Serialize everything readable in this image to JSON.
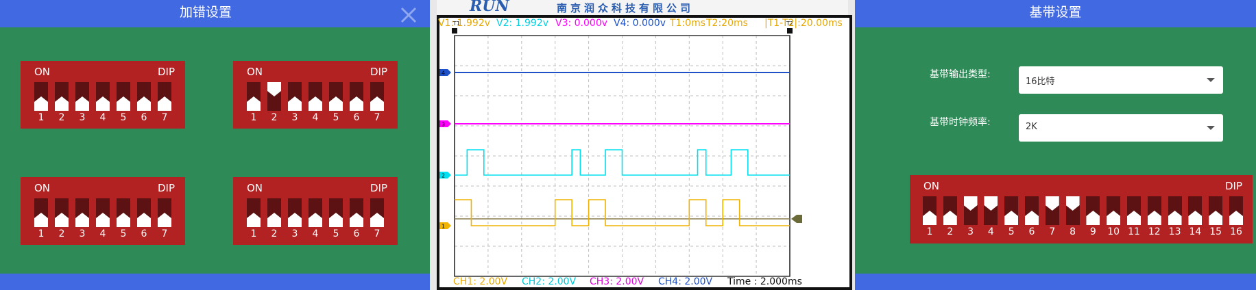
{
  "left_panel": {
    "title": "加错设置",
    "dips": [
      {
        "on_label": "ON",
        "dip_label": "DIP",
        "switches": [
          {
            "n": "1",
            "up": false
          },
          {
            "n": "2",
            "up": false
          },
          {
            "n": "3",
            "up": false
          },
          {
            "n": "4",
            "up": false
          },
          {
            "n": "5",
            "up": false
          },
          {
            "n": "6",
            "up": false
          },
          {
            "n": "7",
            "up": false
          }
        ]
      },
      {
        "on_label": "ON",
        "dip_label": "DIP",
        "switches": [
          {
            "n": "1",
            "up": false
          },
          {
            "n": "2",
            "up": true
          },
          {
            "n": "3",
            "up": false
          },
          {
            "n": "4",
            "up": false
          },
          {
            "n": "5",
            "up": false
          },
          {
            "n": "6",
            "up": false
          },
          {
            "n": "7",
            "up": false
          }
        ]
      },
      {
        "on_label": "ON",
        "dip_label": "DIP",
        "switches": [
          {
            "n": "1",
            "up": false
          },
          {
            "n": "2",
            "up": false
          },
          {
            "n": "3",
            "up": false
          },
          {
            "n": "4",
            "up": false
          },
          {
            "n": "5",
            "up": false
          },
          {
            "n": "6",
            "up": false
          },
          {
            "n": "7",
            "up": false
          }
        ]
      },
      {
        "on_label": "ON",
        "dip_label": "DIP",
        "switches": [
          {
            "n": "1",
            "up": false
          },
          {
            "n": "2",
            "up": false
          },
          {
            "n": "3",
            "up": false
          },
          {
            "n": "4",
            "up": false
          },
          {
            "n": "5",
            "up": false
          },
          {
            "n": "6",
            "up": false
          },
          {
            "n": "7",
            "up": false
          }
        ]
      }
    ]
  },
  "oscilloscope": {
    "brand_logo": "RUN",
    "brand_name": "南京润众科技有限公司",
    "measurements": [
      {
        "text": "V1: 1.992v",
        "color": "#e6a800"
      },
      {
        "text": "V2: 1.992v",
        "color": "#00d0e0"
      },
      {
        "text": "V3: 0.000v",
        "color": "#ff00ff"
      },
      {
        "text": "V4: 0.000v",
        "color": "#1e50c8"
      },
      {
        "text": "T1:0ms",
        "color": "#e6a800"
      },
      {
        "text": "T2:20ms",
        "color": "#e6a800"
      },
      {
        "text": "|T1-T2|:20.00ms",
        "color": "#e6a800"
      }
    ],
    "cursor_labels": [
      "T1",
      "T2"
    ],
    "channel_markers": [
      "4",
      "3",
      "2",
      "1"
    ],
    "bottom_labels": [
      {
        "text": "CH1:  2.00V",
        "color": "#e6a800"
      },
      {
        "text": "CH2:  2.00V",
        "color": "#00c8d8"
      },
      {
        "text": "CH3:  2.00V",
        "color": "#e000e0"
      },
      {
        "text": "CH4:  2.00V",
        "color": "#1e50c8"
      },
      {
        "text": "Time : 2.000ms",
        "color": "#111111"
      }
    ],
    "channel_colors": {
      "ch1": "#f0b400",
      "ch2": "#00e0f0",
      "ch3": "#ff00ff",
      "ch4": "#1e50c8"
    },
    "time_per_div_ms": 2.0,
    "volts_per_div": 2.0,
    "ch2_high_intervals_ms": [
      [
        0.75,
        1.75
      ],
      [
        7.0,
        7.5
      ],
      [
        9.0,
        10.0
      ],
      [
        14.5,
        15.0
      ],
      [
        16.5,
        17.5
      ]
    ],
    "ch1_high_intervals_ms": [
      [
        0.0,
        1.0
      ],
      [
        6.0,
        7.0
      ],
      [
        8.0,
        9.0
      ],
      [
        14.0,
        15.0
      ],
      [
        16.0,
        17.0
      ]
    ]
  },
  "right_panel": {
    "title": "基带设置",
    "output_type_label": "基带输出类型:",
    "output_type_value": "16比特",
    "clock_freq_label": "基带时钟频率:",
    "clock_freq_value": "2K",
    "dip": {
      "on_label": "ON",
      "dip_label": "DIP",
      "switches": [
        {
          "n": "1",
          "up": false
        },
        {
          "n": "2",
          "up": false
        },
        {
          "n": "3",
          "up": true
        },
        {
          "n": "4",
          "up": true
        },
        {
          "n": "5",
          "up": false
        },
        {
          "n": "6",
          "up": false
        },
        {
          "n": "7",
          "up": true
        },
        {
          "n": "8",
          "up": true
        },
        {
          "n": "9",
          "up": false
        },
        {
          "n": "10",
          "up": false
        },
        {
          "n": "11",
          "up": false
        },
        {
          "n": "12",
          "up": false
        },
        {
          "n": "13",
          "up": false
        },
        {
          "n": "14",
          "up": false
        },
        {
          "n": "15",
          "up": false
        },
        {
          "n": "16",
          "up": false
        }
      ]
    }
  }
}
